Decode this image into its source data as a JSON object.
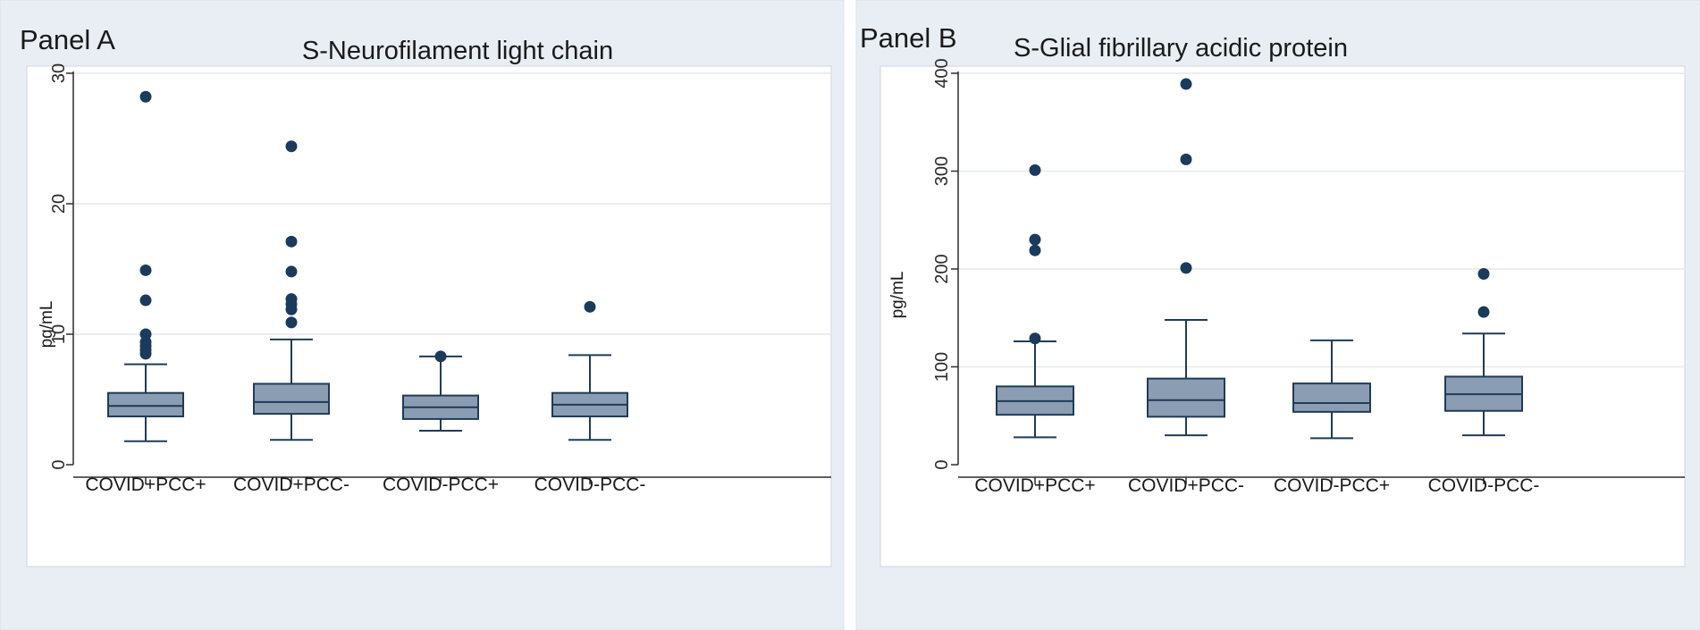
{
  "chart_data": [
    {
      "type": "box",
      "panel_label": "Panel A",
      "title": "S-Neurofilament light chain",
      "xlabel": "",
      "ylabel": "pg/mL",
      "ylim": [
        0,
        30
      ],
      "yticks": [
        0,
        10,
        20,
        30
      ],
      "grid": true,
      "categories": [
        "COVID+PCC+",
        "COVID+PCC-",
        "COVID-PCC+",
        "COVID-PCC-"
      ],
      "boxes": [
        {
          "min": 1.8,
          "q1": 3.7,
          "median": 4.5,
          "q3": 5.5,
          "max": 7.7,
          "outliers": [
            28.2,
            14.9,
            12.6,
            10.0,
            9.4,
            9.1,
            8.8,
            8.5
          ]
        },
        {
          "min": 1.9,
          "q1": 3.9,
          "median": 4.8,
          "q3": 6.2,
          "max": 9.6,
          "outliers": [
            24.4,
            17.1,
            14.8,
            12.7,
            12.3,
            11.9,
            10.9
          ]
        },
        {
          "min": 2.6,
          "q1": 3.5,
          "median": 4.4,
          "q3": 5.3,
          "max": 8.3,
          "outliers": [
            8.3
          ]
        },
        {
          "min": 1.9,
          "q1": 3.7,
          "median": 4.6,
          "q3": 5.5,
          "max": 8.4,
          "outliers": [
            12.1
          ]
        }
      ]
    },
    {
      "type": "box",
      "panel_label": "Panel B",
      "title": "S-Glial fibrillary acidic protein",
      "xlabel": "",
      "ylabel": "pg/mL",
      "ylim": [
        0,
        400
      ],
      "yticks": [
        0,
        100,
        200,
        300,
        400
      ],
      "grid": true,
      "categories": [
        "COVID+PCC+",
        "COVID+PCC-",
        "COVID-PCC+",
        "COVID-PCC-"
      ],
      "boxes": [
        {
          "min": 28,
          "q1": 51,
          "median": 65,
          "q3": 80,
          "max": 126,
          "outliers": [
            301,
            230,
            219,
            129
          ]
        },
        {
          "min": 30,
          "q1": 49,
          "median": 66,
          "q3": 88,
          "max": 148,
          "outliers": [
            389,
            312,
            201
          ]
        },
        {
          "min": 27,
          "q1": 54,
          "median": 63,
          "q3": 83,
          "max": 127,
          "outliers": []
        },
        {
          "min": 30,
          "q1": 55,
          "median": 72,
          "q3": 90,
          "max": 134,
          "outliers": [
            195,
            156
          ]
        }
      ]
    }
  ],
  "colors": {
    "box_fill": "#8b9db3",
    "line": "#1f3b57",
    "outlier": "#1b3a5c"
  }
}
